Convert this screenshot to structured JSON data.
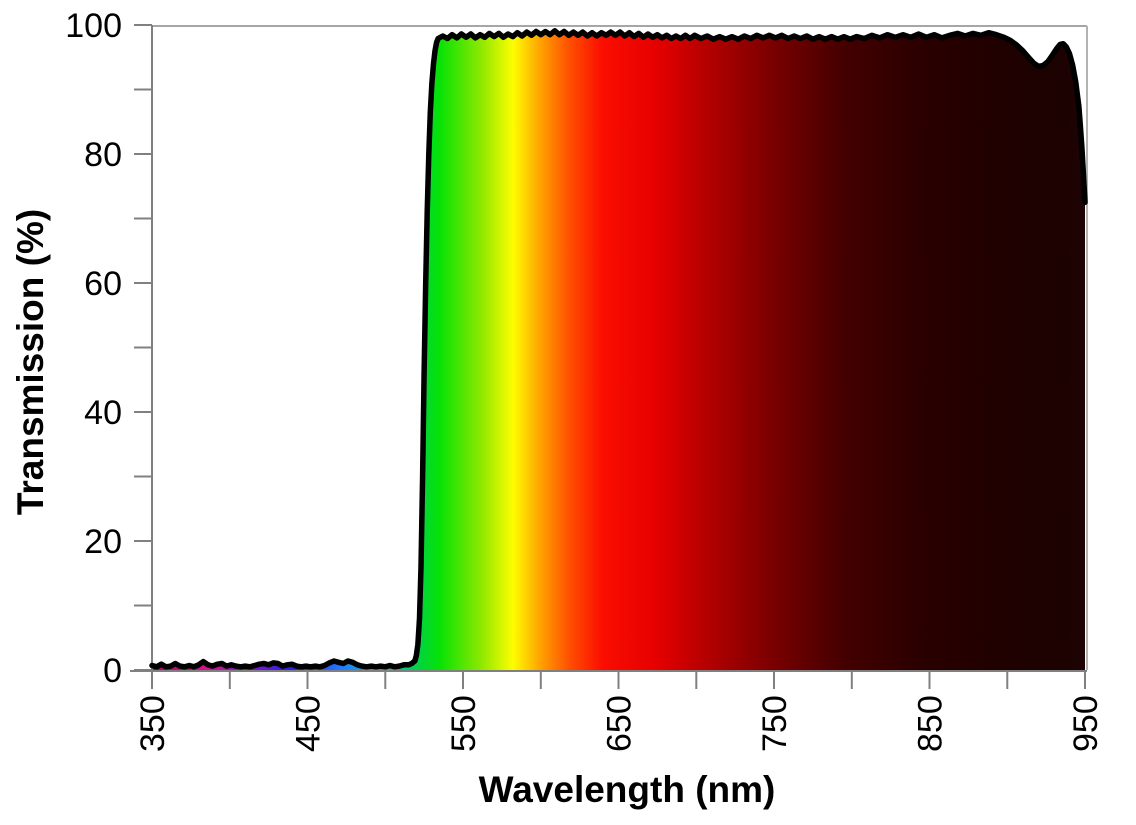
{
  "colors": {
    "background": "#ffffff",
    "curve_line": "#000000",
    "axis_line": "#808080",
    "tick": "#808080",
    "plot_border_top": "#a6a6a6",
    "plot_border_right": "#b3b3b3",
    "text": "#000000"
  },
  "chart_data": {
    "type": "area",
    "title": "",
    "xlabel": "Wavelength (nm)",
    "ylabel": "Transmission (%)",
    "grid": "off",
    "legend": "none",
    "description": "Long-pass optical filter transmission spectrum: <1.5% noise below 520 nm, sharp cut-on at ~525-533 nm, ~98% rippled plateau from 535 to 900 nm, dip to ~93.5% near 920 nm, local peak ~97% at 934 nm, falling to ~72% at 950 nm. Area under curve filled with visible-spectrum gradient fading to near-black in the infrared.",
    "x_axis": {
      "min": 350,
      "max": 950,
      "major_ticks": [
        350,
        450,
        550,
        650,
        750,
        850,
        950
      ],
      "tick_labels": [
        "350",
        "450",
        "550",
        "650",
        "750",
        "850",
        "950"
      ],
      "minor_ticks": [
        400,
        500,
        600,
        700,
        800,
        900
      ],
      "label_rotation_deg": -90
    },
    "y_axis": {
      "min": 0,
      "max": 100,
      "major_ticks": [
        0,
        20,
        40,
        60,
        80,
        100
      ],
      "tick_labels": [
        "0",
        "20",
        "40",
        "60",
        "80",
        "100"
      ],
      "minor_ticks": [
        10,
        30,
        50,
        70,
        90
      ]
    },
    "spectrum_gradient_stops": [
      {
        "offset": 0.0,
        "color": "#c00070"
      },
      {
        "offset": 0.06,
        "color": "#d6128e"
      },
      {
        "offset": 0.103,
        "color": "#8812d6"
      },
      {
        "offset": 0.15,
        "color": "#2b20e6"
      },
      {
        "offset": 0.203,
        "color": "#2479ff"
      },
      {
        "offset": 0.25,
        "color": "#00c2c8"
      },
      {
        "offset": 0.28,
        "color": "#00cf50"
      },
      {
        "offset": 0.308,
        "color": "#06e206"
      },
      {
        "offset": 0.353,
        "color": "#8fe800"
      },
      {
        "offset": 0.387,
        "color": "#fdfd00"
      },
      {
        "offset": 0.417,
        "color": "#ffa000"
      },
      {
        "offset": 0.447,
        "color": "#ff5000"
      },
      {
        "offset": 0.483,
        "color": "#fb0d00"
      },
      {
        "offset": 0.542,
        "color": "#e40000"
      },
      {
        "offset": 0.6,
        "color": "#b00000"
      },
      {
        "offset": 0.667,
        "color": "#780000"
      },
      {
        "offset": 0.742,
        "color": "#440000"
      },
      {
        "offset": 0.825,
        "color": "#2a0000"
      },
      {
        "offset": 0.917,
        "color": "#1e0100"
      },
      {
        "offset": 1.0,
        "color": "#1d0303"
      }
    ],
    "series": [
      {
        "name": "filter-transmission",
        "line_color": "#000000",
        "line_width": 5.5,
        "fill": "spectral-gradient",
        "points": [
          [
            350,
            0.7
          ],
          [
            353,
            0.5
          ],
          [
            356,
            0.9
          ],
          [
            359,
            0.5
          ],
          [
            362,
            0.6
          ],
          [
            365,
            1.0
          ],
          [
            368,
            0.6
          ],
          [
            371,
            0.5
          ],
          [
            374,
            0.7
          ],
          [
            377,
            0.5
          ],
          [
            380,
            0.8
          ],
          [
            383,
            1.3
          ],
          [
            386,
            0.8
          ],
          [
            389,
            0.6
          ],
          [
            392,
            0.9
          ],
          [
            395,
            1.0
          ],
          [
            398,
            0.6
          ],
          [
            401,
            0.8
          ],
          [
            404,
            0.6
          ],
          [
            407,
            0.5
          ],
          [
            410,
            0.6
          ],
          [
            413,
            0.5
          ],
          [
            416,
            0.7
          ],
          [
            419,
            0.9
          ],
          [
            422,
            1.0
          ],
          [
            425,
            0.8
          ],
          [
            428,
            1.1
          ],
          [
            431,
            1.0
          ],
          [
            434,
            0.6
          ],
          [
            437,
            0.8
          ],
          [
            440,
            0.9
          ],
          [
            443,
            0.6
          ],
          [
            446,
            0.5
          ],
          [
            449,
            0.6
          ],
          [
            452,
            0.5
          ],
          [
            455,
            0.6
          ],
          [
            458,
            0.5
          ],
          [
            461,
            0.7
          ],
          [
            464,
            1.1
          ],
          [
            467,
            1.4
          ],
          [
            470,
            1.2
          ],
          [
            473,
            1.0
          ],
          [
            476,
            1.4
          ],
          [
            479,
            1.2
          ],
          [
            482,
            0.8
          ],
          [
            485,
            0.6
          ],
          [
            488,
            0.5
          ],
          [
            491,
            0.6
          ],
          [
            494,
            0.5
          ],
          [
            497,
            0.6
          ],
          [
            500,
            0.5
          ],
          [
            503,
            0.7
          ],
          [
            506,
            0.5
          ],
          [
            509,
            0.6
          ],
          [
            512,
            0.8
          ],
          [
            515,
            0.8
          ],
          [
            517,
            1.0
          ],
          [
            519,
            1.4
          ],
          [
            520,
            2.2
          ],
          [
            521,
            4
          ],
          [
            522,
            8
          ],
          [
            523,
            16
          ],
          [
            524,
            30
          ],
          [
            525,
            46
          ],
          [
            526,
            60
          ],
          [
            527,
            71
          ],
          [
            528,
            80
          ],
          [
            529,
            86.5
          ],
          [
            530,
            91
          ],
          [
            531,
            94
          ],
          [
            532,
            96
          ],
          [
            533,
            97.3
          ],
          [
            534,
            97.9
          ],
          [
            537,
            98.3
          ],
          [
            540,
            97.9
          ],
          [
            543,
            98.5
          ],
          [
            546,
            98.0
          ],
          [
            549,
            98.6
          ],
          [
            552,
            98.1
          ],
          [
            555,
            98.6
          ],
          [
            558,
            98.0
          ],
          [
            561,
            98.5
          ],
          [
            564,
            98.1
          ],
          [
            567,
            98.7
          ],
          [
            570,
            98.2
          ],
          [
            573,
            98.7
          ],
          [
            576,
            98.1
          ],
          [
            579,
            98.6
          ],
          [
            582,
            98.2
          ],
          [
            585,
            98.8
          ],
          [
            588,
            98.3
          ],
          [
            591,
            98.9
          ],
          [
            594,
            98.4
          ],
          [
            597,
            99.0
          ],
          [
            600,
            98.5
          ],
          [
            603,
            99.0
          ],
          [
            606,
            98.5
          ],
          [
            609,
            99.1
          ],
          [
            612,
            98.5
          ],
          [
            615,
            99.0
          ],
          [
            618,
            98.4
          ],
          [
            621,
            98.9
          ],
          [
            624,
            98.4
          ],
          [
            627,
            98.9
          ],
          [
            630,
            98.3
          ],
          [
            633,
            98.8
          ],
          [
            636,
            98.3
          ],
          [
            639,
            98.8
          ],
          [
            642,
            98.4
          ],
          [
            645,
            98.9
          ],
          [
            648,
            98.4
          ],
          [
            651,
            98.9
          ],
          [
            654,
            98.3
          ],
          [
            657,
            98.8
          ],
          [
            660,
            98.2
          ],
          [
            663,
            98.7
          ],
          [
            666,
            98.1
          ],
          [
            669,
            98.6
          ],
          [
            672,
            98.1
          ],
          [
            675,
            98.5
          ],
          [
            678,
            98.0
          ],
          [
            681,
            98.4
          ],
          [
            684,
            97.9
          ],
          [
            687,
            98.3
          ],
          [
            690,
            97.9
          ],
          [
            693,
            98.4
          ],
          [
            696,
            97.9
          ],
          [
            699,
            98.4
          ],
          [
            703,
            97.9
          ],
          [
            707,
            98.3
          ],
          [
            711,
            97.8
          ],
          [
            715,
            98.2
          ],
          [
            719,
            97.8
          ],
          [
            723,
            98.2
          ],
          [
            727,
            97.8
          ],
          [
            731,
            98.3
          ],
          [
            735,
            97.9
          ],
          [
            739,
            98.4
          ],
          [
            743,
            98.0
          ],
          [
            747,
            98.4
          ],
          [
            751,
            98.0
          ],
          [
            755,
            98.4
          ],
          [
            759,
            97.9
          ],
          [
            763,
            98.3
          ],
          [
            767,
            97.9
          ],
          [
            771,
            98.3
          ],
          [
            775,
            97.8
          ],
          [
            779,
            98.2
          ],
          [
            783,
            97.8
          ],
          [
            787,
            98.2
          ],
          [
            791,
            97.8
          ],
          [
            795,
            98.2
          ],
          [
            799,
            97.8
          ],
          [
            803,
            98.2
          ],
          [
            808,
            97.9
          ],
          [
            813,
            98.4
          ],
          [
            818,
            98.0
          ],
          [
            823,
            98.5
          ],
          [
            828,
            98.1
          ],
          [
            833,
            98.5
          ],
          [
            838,
            98.1
          ],
          [
            843,
            98.6
          ],
          [
            848,
            98.1
          ],
          [
            853,
            98.5
          ],
          [
            858,
            98.0
          ],
          [
            863,
            98.4
          ],
          [
            868,
            98.7
          ],
          [
            873,
            98.3
          ],
          [
            878,
            98.7
          ],
          [
            883,
            98.4
          ],
          [
            888,
            98.8
          ],
          [
            893,
            98.5
          ],
          [
            898,
            98.1
          ],
          [
            902,
            97.6
          ],
          [
            906,
            96.9
          ],
          [
            910,
            96.0
          ],
          [
            914,
            94.9
          ],
          [
            917,
            94.1
          ],
          [
            920,
            93.6
          ],
          [
            923,
            93.7
          ],
          [
            926,
            94.3
          ],
          [
            929,
            95.3
          ],
          [
            932,
            96.4
          ],
          [
            934,
            97.0
          ],
          [
            936,
            97.1
          ],
          [
            938,
            96.6
          ],
          [
            940,
            95.6
          ],
          [
            942,
            93.8
          ],
          [
            944,
            91.2
          ],
          [
            946,
            87.5
          ],
          [
            947,
            84.5
          ],
          [
            948,
            81.0
          ],
          [
            949,
            77.0
          ],
          [
            950,
            72.5
          ]
        ]
      }
    ]
  }
}
